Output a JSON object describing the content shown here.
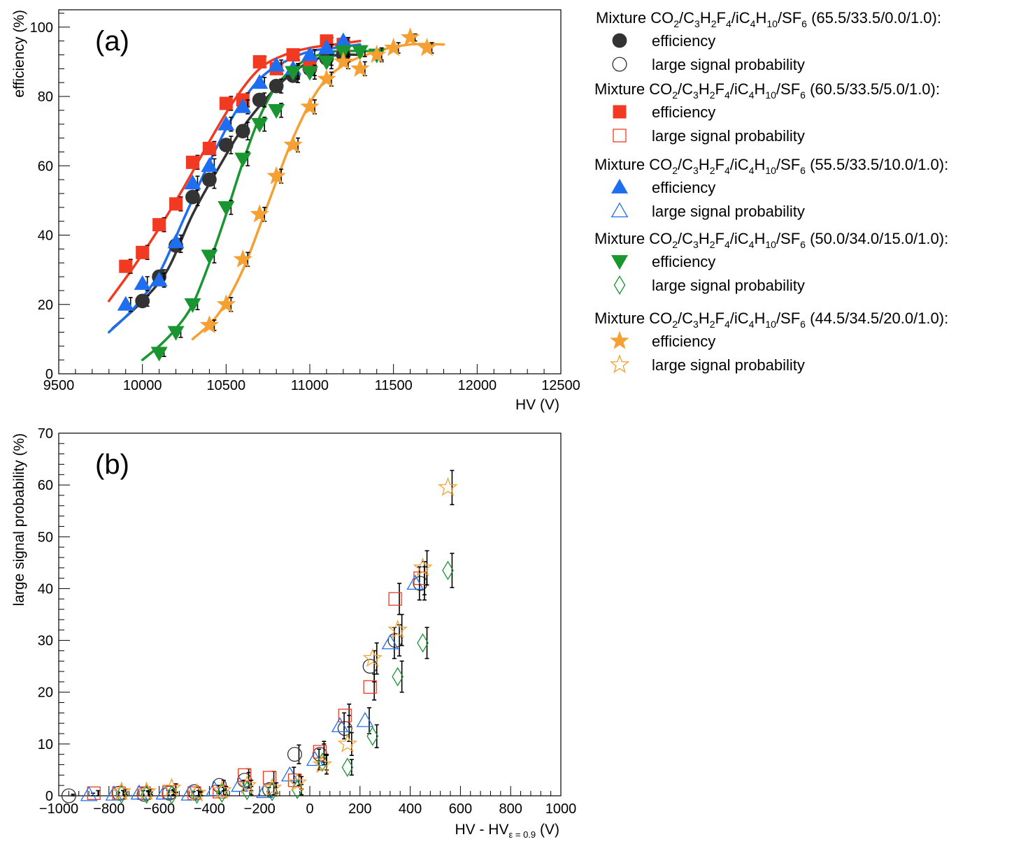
{
  "colors": {
    "black": "#333333",
    "red": "#f23a22",
    "blue": "#1f6ef0",
    "green": "#1a9630",
    "orange": "#f5a033",
    "frame": "#000000"
  },
  "chart_data": [
    {
      "type": "scatter",
      "panel_label": "(a)",
      "xlabel": "HV (V)",
      "ylabel": "efficiency (%)",
      "xlim": [
        9500,
        12500
      ],
      "ylim": [
        0,
        105
      ],
      "x_ticks": [
        9500,
        10000,
        10500,
        11000,
        11500,
        12000,
        12500
      ],
      "y_ticks": [
        0,
        20,
        40,
        60,
        80,
        100
      ],
      "series": [
        {
          "name": "CO2/C3H2F4/iC4H10/SF6 (65.5/33.5/0.0/1.0)",
          "color": "black",
          "marker": "circle-filled",
          "x": [
            10000,
            10100,
            10200,
            10300,
            10400,
            10500,
            10600,
            10700,
            10800,
            10900,
            11000,
            11100,
            11200
          ],
          "y": [
            21,
            28,
            37,
            51,
            56,
            66,
            70,
            79,
            83,
            86,
            88,
            91,
            92
          ],
          "err": [
            1.5,
            2,
            2,
            2.5,
            2.5,
            2.5,
            2.5,
            2,
            2,
            2,
            2,
            2,
            2
          ],
          "fit_x": [
            9820,
            10000,
            10150,
            10300,
            10450,
            10600,
            10750,
            10900,
            11050,
            11200,
            11300
          ],
          "fit_y": [
            13,
            21,
            30,
            46,
            59,
            71,
            80,
            87,
            91,
            92,
            92
          ]
        },
        {
          "name": "CO2/C3H2F4/iC4H10/SF6 (60.5/33.5/5.0/1.0)",
          "color": "red",
          "marker": "square-filled",
          "x": [
            9900,
            10000,
            10100,
            10200,
            10300,
            10400,
            10500,
            10600,
            10700,
            10800,
            10900,
            11000,
            11100,
            11200
          ],
          "y": [
            31,
            35,
            43,
            49,
            61,
            65,
            78,
            79,
            90,
            88,
            92,
            89,
            96,
            95
          ],
          "err": [
            2,
            2,
            2,
            2,
            2,
            2,
            2,
            2,
            1.5,
            1.5,
            1.5,
            1.5,
            1,
            1
          ],
          "fit_x": [
            9800,
            9950,
            10100,
            10250,
            10400,
            10550,
            10700,
            10850,
            11000,
            11150,
            11300
          ],
          "fit_y": [
            21,
            31,
            42,
            54,
            67,
            79,
            88,
            92,
            94,
            95,
            96
          ]
        },
        {
          "name": "CO2/C3H2F4/iC4H10/SF6 (55.5/33.5/10.0/1.0)",
          "color": "blue",
          "marker": "triangle-up-filled",
          "x": [
            9900,
            10000,
            10100,
            10200,
            10300,
            10400,
            10500,
            10600,
            10700,
            10800,
            10900,
            11000,
            11100,
            11200
          ],
          "y": [
            20,
            26,
            27,
            38,
            55,
            60,
            72,
            77,
            84,
            89,
            88,
            92,
            94,
            96
          ],
          "err": [
            2,
            2,
            2,
            2,
            2,
            2,
            2,
            2,
            1.5,
            1.5,
            1.5,
            1.5,
            1,
            1
          ],
          "fit_x": [
            9800,
            9950,
            10100,
            10250,
            10400,
            10550,
            10700,
            10850,
            11000,
            11150,
            11300
          ],
          "fit_y": [
            12,
            19,
            29,
            45,
            61,
            75,
            85,
            90,
            93,
            94,
            95
          ]
        },
        {
          "name": "CO2/C3H2F4/iC4H10/SF6 (50.0/34.0/15.0/1.0)",
          "color": "green",
          "marker": "triangle-down-filled",
          "x": [
            10100,
            10200,
            10300,
            10400,
            10500,
            10600,
            10700,
            10800,
            10900,
            11000,
            11100,
            11200,
            11300,
            11400
          ],
          "y": [
            6,
            12,
            20,
            34,
            48,
            62,
            72,
            76,
            87,
            87,
            90,
            93,
            93,
            92
          ],
          "err": [
            1,
            1.5,
            1.5,
            2,
            2,
            2,
            2,
            2,
            2,
            2,
            2,
            1.5,
            1.5,
            1.5
          ],
          "fit_x": [
            10000,
            10100,
            10200,
            10300,
            10400,
            10500,
            10600,
            10700,
            10800,
            10900,
            11000,
            11150,
            11400
          ],
          "fit_y": [
            4,
            8,
            13,
            20,
            32,
            46,
            61,
            74,
            83,
            88,
            91,
            93,
            93
          ]
        },
        {
          "name": "CO2/C3H2F4/iC4H10/SF6 (44.5/34.5/20.0/1.0)",
          "color": "orange",
          "marker": "star-filled",
          "x": [
            10400,
            10500,
            10600,
            10700,
            10800,
            10900,
            11000,
            11100,
            11200,
            11300,
            11400,
            11500,
            11600,
            11700
          ],
          "y": [
            14,
            20,
            33,
            46,
            57,
            66,
            77,
            85,
            90,
            88,
            92,
            94,
            97,
            94
          ],
          "err": [
            1.5,
            2,
            2,
            2,
            2,
            2,
            2,
            2,
            2,
            2,
            2,
            1.5,
            1,
            1.5
          ],
          "fit_x": [
            10300,
            10450,
            10600,
            10750,
            10900,
            11050,
            11200,
            11400,
            11600,
            11800
          ],
          "fit_y": [
            10,
            17,
            30,
            49,
            68,
            82,
            89,
            93,
            95,
            95
          ]
        }
      ]
    },
    {
      "type": "scatter",
      "panel_label": "(b)",
      "xlabel_main": "HV - HV",
      "xlabel_sub": "ε = 0.9",
      "xlabel_unit": " (V)",
      "ylabel": "large signal probability (%)",
      "xlim": [
        -1000,
        1000
      ],
      "ylim": [
        0,
        70
      ],
      "x_ticks": [
        -1000,
        -800,
        -600,
        -400,
        -200,
        0,
        200,
        400,
        600,
        800,
        1000
      ],
      "x_tick_labels": [
        "−1000",
        "−800",
        "−600",
        "−400",
        "−200",
        "0",
        "200",
        "400",
        "600",
        "800",
        "1000"
      ],
      "y_ticks": [
        0,
        10,
        20,
        30,
        40,
        50,
        60,
        70
      ],
      "series": [
        {
          "name": "CO2/C3H2F4/iC4H10/SF6 (65.5/33.5/0.0/1.0)",
          "color": "black",
          "marker": "circle-open",
          "x": [
            -960,
            -760,
            -660,
            -560,
            -460,
            -360,
            -260,
            -160,
            -60,
            40,
            140,
            240,
            340,
            440
          ],
          "y": [
            0,
            0.5,
            0.3,
            0.5,
            0.8,
            2,
            3,
            1.2,
            8,
            8,
            13,
            25,
            30,
            41
          ],
          "err": [
            0.3,
            0.5,
            0.5,
            0.5,
            0.8,
            1,
            1.5,
            1,
            1.8,
            2,
            2.5,
            3,
            3,
            3.2
          ]
        },
        {
          "name": "CO2/C3H2F4/iC4H10/SF6 (60.5/33.5/5.0/1.0)",
          "color": "red",
          "marker": "square-open",
          "x": [
            -860,
            -760,
            -660,
            -560,
            -460,
            -360,
            -260,
            -160,
            -60,
            40,
            140,
            240,
            340,
            440
          ],
          "y": [
            0.5,
            0.5,
            0.5,
            0.7,
            0.5,
            0.8,
            4,
            3.5,
            3,
            8.5,
            15.5,
            21,
            38,
            42
          ],
          "err": [
            0.5,
            0.5,
            0.5,
            0.5,
            0.5,
            0.8,
            1.2,
            1.2,
            1,
            2,
            2.2,
            2.5,
            3,
            3.2
          ]
        },
        {
          "name": "CO2/C3H2F4/iC4H10/SF6 (55.5/33.5/10.0/1.0)",
          "color": "blue",
          "marker": "triangle-up-open",
          "x": [
            -880,
            -780,
            -680,
            -580,
            -480,
            -380,
            -280,
            -180,
            -80,
            20,
            120,
            220,
            320,
            420
          ],
          "y": [
            0.2,
            0.3,
            0.5,
            0.5,
            0.3,
            1.2,
            2,
            0.8,
            4,
            7,
            13.5,
            14.5,
            29.5,
            41
          ],
          "err": [
            0.3,
            0.3,
            0.5,
            0.5,
            0.5,
            0.8,
            1,
            0.8,
            1.5,
            2,
            2.5,
            2.5,
            3,
            3.2
          ]
        },
        {
          "name": "CO2/C3H2F4/iC4H10/SF6 (50.0/34.0/15.0/1.0)",
          "color": "green",
          "marker": "diamond-open",
          "x": [
            -750,
            -650,
            -550,
            -450,
            -350,
            -250,
            -150,
            -50,
            50,
            150,
            250,
            350,
            450,
            550
          ],
          "y": [
            0.3,
            0.3,
            0.2,
            0.3,
            0.5,
            1,
            0.8,
            1.2,
            6.5,
            5.5,
            11.5,
            23,
            29.5,
            43.5
          ],
          "err": [
            0.4,
            0.4,
            0.4,
            0.4,
            0.5,
            0.8,
            0.8,
            1,
            1.5,
            1.5,
            2.2,
            3,
            3,
            3.3
          ]
        },
        {
          "name": "CO2/C3H2F4/iC4H10/SF6 (44.5/34.5/20.0/1.0)",
          "color": "orange",
          "marker": "star-open",
          "x": [
            -750,
            -650,
            -550,
            -450,
            -350,
            -250,
            -150,
            -50,
            50,
            150,
            250,
            350,
            450,
            550
          ],
          "y": [
            0.8,
            0.8,
            1.5,
            0.5,
            1,
            2,
            1.5,
            2.5,
            6,
            10,
            26.5,
            32,
            44,
            59.5
          ],
          "err": [
            0.5,
            0.5,
            0.8,
            0.5,
            0.8,
            1,
            1,
            1.2,
            1.8,
            2.2,
            3,
            3,
            3.3,
            3.3
          ]
        }
      ]
    }
  ],
  "legend": {
    "groups": [
      {
        "prefix": "Mixture CO",
        "ratio": " (65.5/33.5/0.0/1.0):",
        "color": "black",
        "filled": "circle-filled",
        "open": "circle-open",
        "eff_label": "efficiency",
        "lsp_label": "large signal probability"
      },
      {
        "prefix": "Mixture CO",
        "ratio": " (60.5/33.5/5.0/1.0):",
        "color": "red",
        "filled": "square-filled",
        "open": "square-open",
        "eff_label": "efficiency",
        "lsp_label": "large signal probability"
      },
      {
        "prefix": "Mixture CO",
        "ratio": " (55.5/33.5/10.0/1.0):",
        "color": "blue",
        "filled": "triangle-up-filled",
        "open": "triangle-up-open",
        "eff_label": "efficiency",
        "lsp_label": "large signal probability"
      },
      {
        "prefix": "Mixture CO",
        "ratio": " (50.0/34.0/15.0/1.0):",
        "color": "green",
        "filled": "triangle-down-filled",
        "open": "diamond-open",
        "eff_label": "efficiency",
        "lsp_label": "large signal probability"
      },
      {
        "prefix": "Mixture CO",
        "ratio": " (44.5/34.5/20.0/1.0):",
        "color": "orange",
        "filled": "star-filled",
        "open": "star-open",
        "eff_label": "efficiency",
        "lsp_label": "large signal probability"
      }
    ]
  }
}
